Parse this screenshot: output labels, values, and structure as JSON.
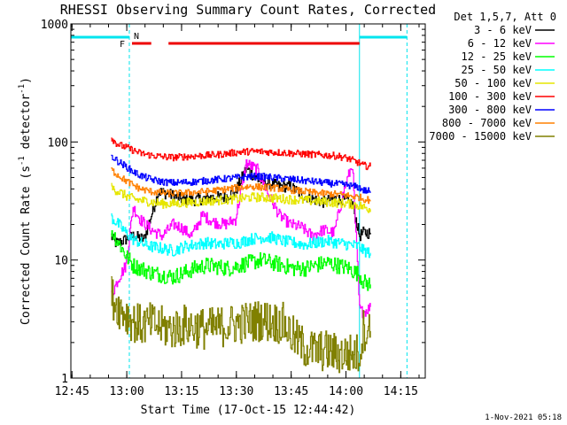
{
  "chart_data": {
    "type": "line",
    "title": "RHESSI Observing Summary Count Rates, Corrected",
    "xlabel": "Start Time (17-Oct-15 12:44:42)",
    "ylabel_main": "Corrected Count Rate (s",
    "ylabel_sup1": "-1",
    "ylabel_mid": " detector",
    "ylabel_sup2": "-1",
    "ylabel_end": ")",
    "yscale": "log",
    "ylim": [
      1,
      1000
    ],
    "xlim_minutes": [
      0,
      97
    ],
    "x_ticks": [
      "12:45",
      "13:00",
      "13:15",
      "13:30",
      "13:45",
      "14:00",
      "14:15"
    ],
    "y_ticks": [
      "1",
      "10",
      "100",
      "1000"
    ],
    "legend_header": "Det 1,5,7, Att 0",
    "legend_placement": "right",
    "timestamp": "1-Nov-2021 05:18",
    "flags": {
      "N_label": "N",
      "F_label": "F",
      "night": [
        [
          0,
          16
        ],
        [
          79,
          92
        ]
      ],
      "flare": [
        [
          16,
          22
        ],
        [
          26,
          79
        ]
      ],
      "dashed_verticals": [
        16,
        92
      ],
      "solid_verticals": [
        0,
        79
      ]
    },
    "series": [
      {
        "name": "3 - 6 keV",
        "color": "#000000",
        "times": [
          11,
          12,
          13,
          17,
          20,
          24,
          27,
          30,
          33,
          36,
          39,
          42,
          45,
          48,
          51,
          54,
          57,
          60,
          63,
          66,
          69,
          72,
          75,
          77,
          79,
          80,
          82
        ],
        "values": [
          16,
          14,
          14,
          16,
          15,
          38,
          36,
          33,
          32,
          33,
          34,
          34,
          38,
          60,
          48,
          45,
          42,
          42,
          36,
          33,
          31,
          33,
          32,
          30,
          16,
          17,
          17
        ]
      },
      {
        "name": "6 - 12 keV",
        "color": "#ff00ff",
        "times": [
          11,
          13,
          15,
          17,
          19,
          22,
          25,
          28,
          30,
          33,
          36,
          39,
          42,
          45,
          48,
          51,
          54,
          57,
          60,
          63,
          66,
          69,
          72,
          75,
          77,
          79,
          80,
          82
        ],
        "values": [
          5,
          7,
          9,
          28,
          22,
          18,
          16,
          20,
          19,
          16,
          24,
          21,
          20,
          22,
          66,
          58,
          36,
          24,
          20,
          19,
          16,
          18,
          17,
          42,
          65,
          3.8,
          3.6,
          4
        ]
      },
      {
        "name": "12 - 25 keV",
        "color": "#00ff00",
        "times": [
          11,
          13,
          15,
          17,
          19,
          22,
          25,
          28,
          31,
          34,
          37,
          40,
          43,
          46,
          49,
          52,
          55,
          58,
          61,
          64,
          67,
          70,
          73,
          76,
          79,
          80,
          82
        ],
        "values": [
          18,
          14,
          11,
          9,
          8.5,
          7.8,
          7.5,
          7.2,
          7.8,
          8.5,
          9,
          8.8,
          8.5,
          9,
          9.5,
          10,
          9.5,
          9,
          8.5,
          8.5,
          9,
          9.5,
          9,
          8.5,
          7.5,
          6.5,
          6.2
        ]
      },
      {
        "name": "25 - 50 keV",
        "color": "#00ffff",
        "times": [
          11,
          13,
          15,
          17,
          19,
          22,
          25,
          28,
          31,
          34,
          37,
          40,
          43,
          46,
          49,
          52,
          55,
          58,
          61,
          64,
          67,
          70,
          73,
          76,
          79,
          80,
          82
        ],
        "values": [
          23,
          20,
          17,
          15,
          14,
          13,
          12.5,
          12,
          13,
          13.5,
          14,
          13.5,
          14,
          14,
          15,
          15.5,
          15.5,
          14.5,
          14,
          13.5,
          14,
          14.5,
          14,
          13.5,
          13,
          12,
          11.5
        ]
      },
      {
        "name": "50 - 100 keV",
        "color": "#e6e600",
        "times": [
          11,
          13,
          15,
          17,
          19,
          22,
          25,
          28,
          31,
          34,
          37,
          40,
          43,
          46,
          49,
          52,
          55,
          58,
          61,
          64,
          67,
          70,
          73,
          76,
          79,
          80,
          82
        ],
        "values": [
          41,
          38,
          35,
          33,
          32,
          31,
          30,
          30,
          30.5,
          31,
          31.5,
          32,
          32.5,
          33,
          34,
          34,
          33.5,
          33,
          32.5,
          32,
          31.5,
          31,
          30.5,
          30,
          29,
          28,
          27
        ]
      },
      {
        "name": "100 - 300 keV",
        "color": "#ff0000",
        "times": [
          11,
          12,
          13,
          15,
          17,
          19,
          22,
          25,
          28,
          31,
          34,
          37,
          40,
          43,
          46,
          49,
          52,
          55,
          58,
          61,
          64,
          67,
          70,
          73,
          76,
          79,
          80,
          82
        ],
        "values": [
          110,
          100,
          95,
          90,
          85,
          80,
          77,
          75,
          74,
          75,
          76,
          77,
          78,
          80,
          82,
          83,
          83,
          82,
          81,
          80,
          79,
          78,
          77,
          76,
          72,
          66,
          63,
          62
        ]
      },
      {
        "name": "300 - 800 keV",
        "color": "#0000ff",
        "times": [
          11,
          13,
          15,
          17,
          19,
          22,
          25,
          28,
          31,
          34,
          37,
          40,
          43,
          46,
          49,
          52,
          55,
          58,
          61,
          64,
          67,
          70,
          73,
          76,
          79,
          80,
          82
        ],
        "values": [
          76,
          68,
          62,
          56,
          52,
          48,
          46,
          45,
          45.5,
          46,
          47,
          48,
          49,
          50,
          51,
          51,
          50,
          49,
          48,
          47,
          46,
          45,
          44,
          43,
          41,
          39,
          38
        ]
      },
      {
        "name": "800 - 7000 keV",
        "color": "#ff8000",
        "times": [
          11,
          13,
          15,
          17,
          19,
          22,
          25,
          28,
          31,
          34,
          37,
          40,
          43,
          46,
          49,
          52,
          55,
          58,
          61,
          64,
          67,
          70,
          73,
          76,
          79,
          80,
          82
        ],
        "values": [
          58,
          52,
          47,
          43,
          40,
          38,
          37,
          36.5,
          37,
          37.5,
          38,
          39,
          40,
          41,
          42,
          41.5,
          41,
          40,
          39,
          38,
          37,
          36.5,
          36,
          35,
          34,
          33,
          32
        ]
      },
      {
        "name": "7000 - 15000 keV",
        "color": "#808000",
        "times": [
          11,
          13,
          15,
          17,
          19,
          22,
          25,
          28,
          31,
          34,
          37,
          40,
          43,
          46,
          49,
          52,
          55,
          58,
          61,
          64,
          67,
          70,
          73,
          76,
          79,
          80,
          82
        ],
        "values": [
          5,
          4,
          3.5,
          3,
          2.8,
          2.9,
          2.7,
          2.6,
          2.8,
          2.7,
          2.6,
          2.7,
          2.8,
          2.9,
          3,
          3.1,
          3,
          2.9,
          2.2,
          1.8,
          1.7,
          1.7,
          1.6,
          1.6,
          1.6,
          2.6,
          2.5
        ]
      }
    ]
  }
}
